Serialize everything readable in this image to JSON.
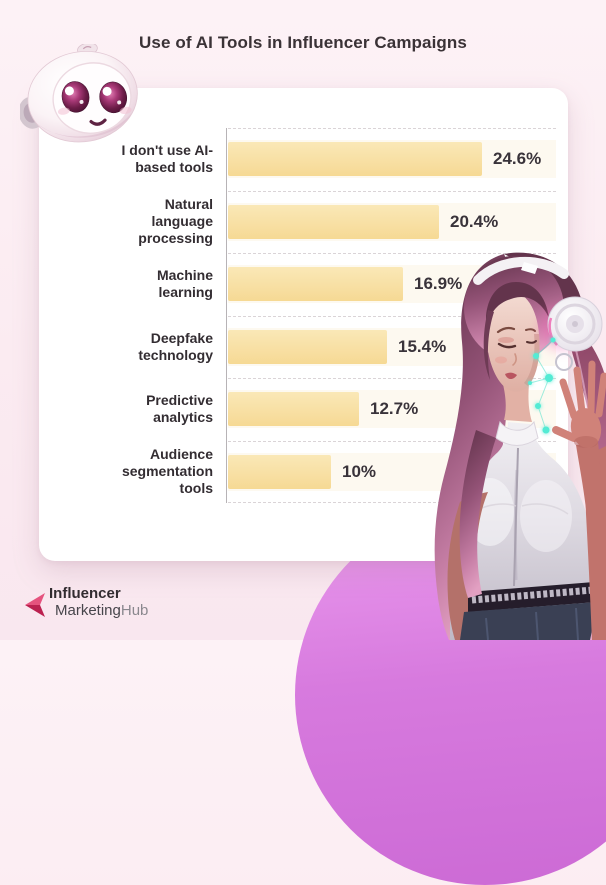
{
  "chart_data": {
    "type": "bar",
    "orientation": "horizontal",
    "title": "Use of AI Tools in Influencer Campaigns",
    "categories": [
      "I don't use AI-based tools",
      "Natural language processing",
      "Machine learning",
      "Deepfake technology",
      "Predictive analytics",
      "Audience segmentation tools"
    ],
    "values": [
      24.6,
      20.4,
      16.9,
      15.4,
      12.7,
      10
    ],
    "value_labels": [
      "24.6%",
      "20.4%",
      "16.9%",
      "15.4%",
      "12.7%",
      "10%"
    ],
    "unit": "%",
    "xlim": [
      0,
      32
    ],
    "grid": "dashed horizontal row separators with solid vertical baseline",
    "legend": "none",
    "bar_color_top": "#FAE8B7",
    "bar_color_bottom": "#F6D994"
  },
  "branding": {
    "logo_word1": "Influencer",
    "logo_word2": "Marketing",
    "logo_word3": "Hub",
    "logo_arrow_colors": [
      "#E5537E",
      "#BB2150"
    ]
  },
  "decor": {
    "mascot": "cute-robot-head",
    "illustration": "woman-with-headphones-and-glowing-ai-dots",
    "background_color": "#FBECF2",
    "circle_color": "#D77ADE",
    "card_color": "#FFFFFF"
  }
}
